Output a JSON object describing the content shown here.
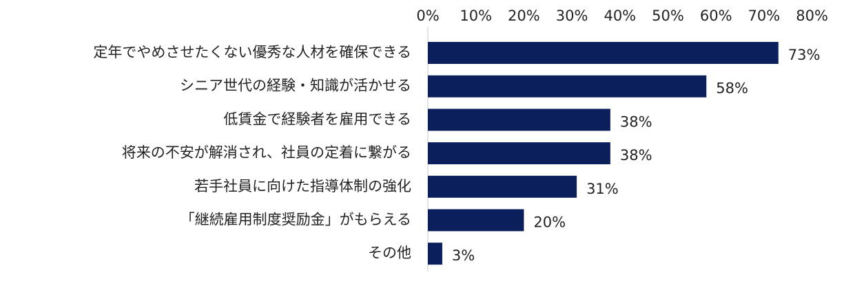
{
  "chart_data": {
    "type": "bar",
    "orientation": "horizontal",
    "categories": [
      "定年でやめさせたくない優秀な人材を確保できる",
      "シニア世代の経験・知識が活かせる",
      "低賃金で経験者を雇用できる",
      "将来の不安が解消され、社員の定着に繋がる",
      "若手社員に向けた指導体制の強化",
      "「継続雇用制度奨励金」がもらえる",
      "その他"
    ],
    "values": [
      73,
      58,
      38,
      38,
      31,
      20,
      3
    ],
    "value_labels": [
      "73%",
      "58%",
      "38%",
      "38%",
      "31%",
      "20%",
      "3%"
    ],
    "x_ticks": [
      0,
      10,
      20,
      30,
      40,
      50,
      60,
      70,
      80
    ],
    "x_tick_labels": [
      "0%",
      "10%",
      "20%",
      "30%",
      "40%",
      "50%",
      "60%",
      "70%",
      "80%"
    ],
    "xlim": [
      0,
      80
    ],
    "x_axis_position": "top",
    "grid": false,
    "legend": "none",
    "bar_color": "#0b1f5c"
  }
}
